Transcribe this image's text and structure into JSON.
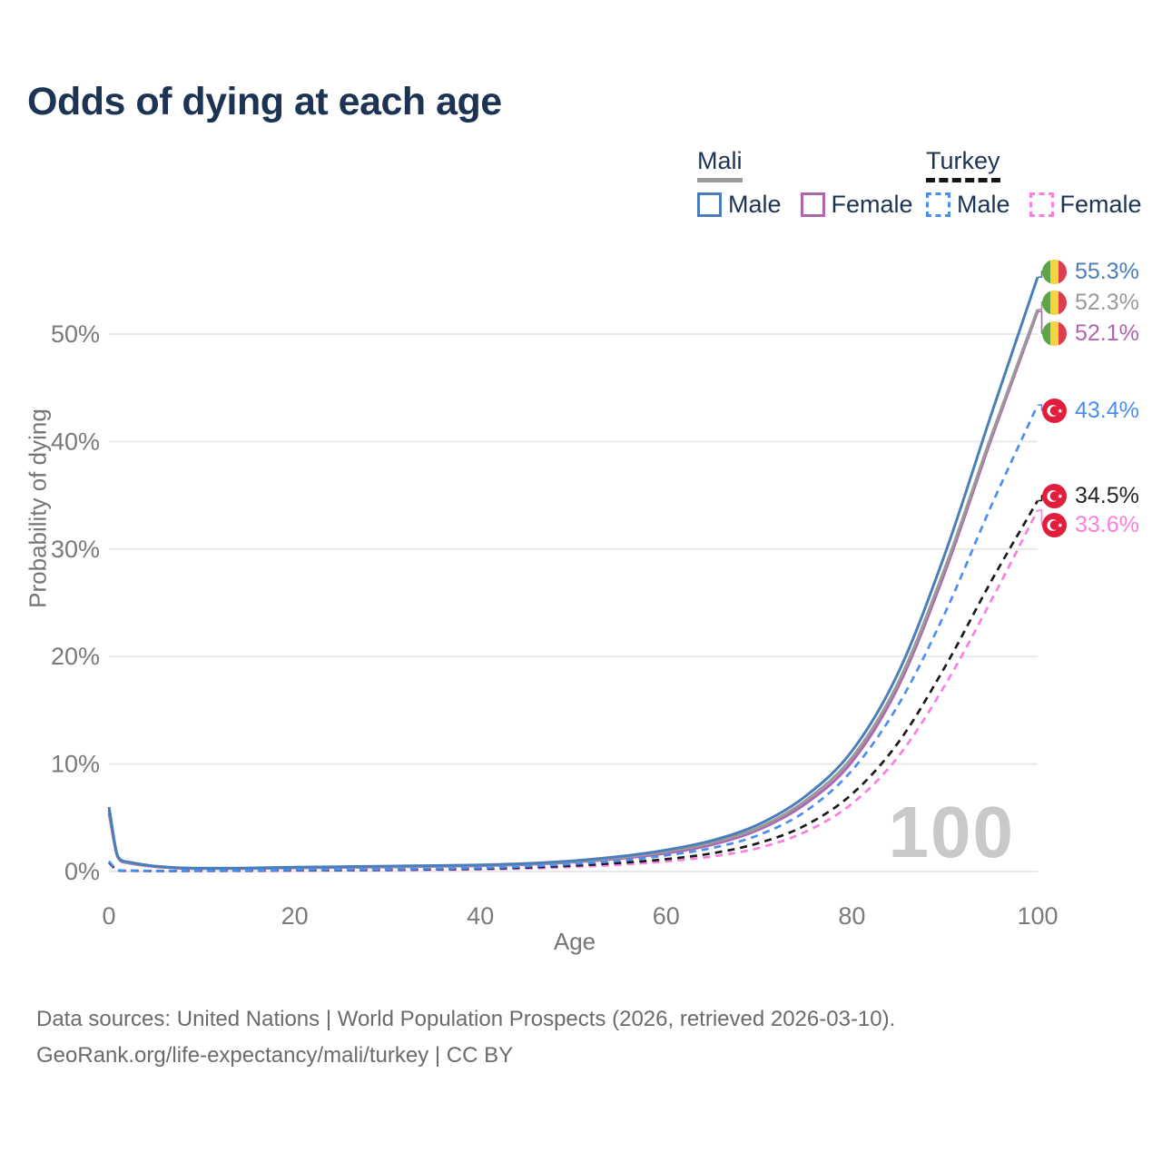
{
  "title": "Odds of dying at each age",
  "legend": {
    "groups": [
      {
        "label": "Mali",
        "line_style": "solid",
        "items": [
          {
            "label": "Male"
          },
          {
            "label": "Female"
          }
        ]
      },
      {
        "label": "Turkey",
        "line_style": "dashed",
        "items": [
          {
            "label": "Male"
          },
          {
            "label": "Female"
          }
        ]
      }
    ]
  },
  "watermark": "100",
  "footer": {
    "line1": "Data sources: United Nations | World Population Prospects (2026, retrieved 2026-03-10).",
    "line2": "GeoRank.org/life-expectancy/mali/turkey | CC BY"
  },
  "icons": {
    "mali_flag": "mali-flag-icon",
    "turkey_flag": "turkey-flag-icon"
  },
  "colors": {
    "title_text": "#1d3354",
    "axis_text": "#757575",
    "grid": "#e9e9e9",
    "watermark": "#c9c9c9",
    "mali_male": "#4a7eba",
    "mali_both": "#9a9a9a",
    "mali_female": "#b165ae",
    "turkey_male": "#4b8ef2",
    "turkey_both": "#1a1a1a",
    "turkey_female": "#fc7ee0",
    "mali_flag_green": "#5fa446",
    "mali_flag_yellow": "#f5d342",
    "mali_flag_red": "#dc3f4b",
    "turkey_flag_red": "#e11d3c"
  },
  "chart_data": {
    "type": "line",
    "title": "Odds of dying at each age",
    "xlabel": "Age",
    "ylabel": "Probability of dying",
    "xlim": [
      0,
      100
    ],
    "ylim": [
      0,
      57
    ],
    "grid": "horizontal",
    "legend_position": "top-right",
    "x_ticks": [
      {
        "v": 0,
        "label": "0"
      },
      {
        "v": 20,
        "label": "20"
      },
      {
        "v": 40,
        "label": "40"
      },
      {
        "v": 60,
        "label": "60"
      },
      {
        "v": 80,
        "label": "80"
      },
      {
        "v": 100,
        "label": "100"
      }
    ],
    "y_ticks": [
      {
        "v": 0,
        "label": "0%"
      },
      {
        "v": 10,
        "label": "10%"
      },
      {
        "v": 20,
        "label": "20%"
      },
      {
        "v": 30,
        "label": "30%"
      },
      {
        "v": 40,
        "label": "40%"
      },
      {
        "v": 50,
        "label": "50%"
      }
    ],
    "x": [
      0,
      1,
      2,
      5,
      10,
      15,
      20,
      25,
      30,
      35,
      40,
      45,
      50,
      55,
      60,
      65,
      70,
      75,
      80,
      85,
      90,
      95,
      100
    ],
    "series": [
      {
        "name": "Mali Male",
        "country": "Mali",
        "sex": "Male",
        "line_style": "solid",
        "color": "#4a7eba",
        "end_label": "55.3%",
        "end_value": 55.3,
        "values": [
          6.0,
          1.35,
          0.9,
          0.5,
          0.3,
          0.32,
          0.4,
          0.45,
          0.5,
          0.55,
          0.62,
          0.75,
          1.0,
          1.4,
          2.0,
          2.9,
          4.4,
          7.0,
          11.2,
          18.5,
          29.5,
          42.5,
          55.3
        ]
      },
      {
        "name": "Mali Both sexes",
        "country": "Mali",
        "sex": "Both",
        "line_style": "solid",
        "color": "#9a9a9a",
        "end_label": "52.3%",
        "end_value": 52.3,
        "values": [
          5.7,
          1.3,
          0.85,
          0.48,
          0.28,
          0.3,
          0.37,
          0.42,
          0.46,
          0.5,
          0.57,
          0.7,
          0.92,
          1.3,
          1.85,
          2.7,
          4.1,
          6.6,
          10.6,
          17.6,
          28.2,
          40.5,
          52.3
        ]
      },
      {
        "name": "Mali Female",
        "country": "Mali",
        "sex": "Female",
        "line_style": "solid",
        "color": "#b165ae",
        "end_label": "52.1%",
        "end_value": 52.1,
        "values": [
          5.4,
          1.25,
          0.8,
          0.45,
          0.27,
          0.28,
          0.34,
          0.38,
          0.42,
          0.47,
          0.53,
          0.65,
          0.86,
          1.2,
          1.7,
          2.5,
          3.9,
          6.3,
          10.2,
          17.2,
          27.8,
          40.2,
          52.1
        ]
      },
      {
        "name": "Turkey Male",
        "country": "Turkey",
        "sex": "Male",
        "line_style": "dashed",
        "color": "#4b8ef2",
        "end_label": "43.4%",
        "end_value": 43.4,
        "values": [
          0.95,
          0.12,
          0.08,
          0.06,
          0.07,
          0.1,
          0.14,
          0.17,
          0.2,
          0.25,
          0.33,
          0.47,
          0.7,
          1.0,
          1.5,
          2.2,
          3.4,
          5.6,
          9.4,
          15.5,
          24.0,
          34.0,
          43.4
        ]
      },
      {
        "name": "Turkey Both sexes",
        "country": "Turkey",
        "sex": "Both",
        "line_style": "dashed",
        "color": "#1a1a1a",
        "end_label": "34.5%",
        "end_value": 34.5,
        "values": [
          0.85,
          0.1,
          0.07,
          0.05,
          0.06,
          0.08,
          0.11,
          0.13,
          0.16,
          0.2,
          0.26,
          0.37,
          0.55,
          0.8,
          1.15,
          1.7,
          2.65,
          4.3,
          7.2,
          12.0,
          19.0,
          27.0,
          34.5
        ]
      },
      {
        "name": "Turkey Female",
        "country": "Turkey",
        "sex": "Female",
        "line_style": "dashed",
        "color": "#fc7ee0",
        "end_label": "33.6%",
        "end_value": 33.6,
        "values": [
          0.8,
          0.09,
          0.06,
          0.04,
          0.05,
          0.06,
          0.08,
          0.1,
          0.12,
          0.15,
          0.2,
          0.28,
          0.42,
          0.63,
          0.95,
          1.4,
          2.2,
          3.7,
          6.3,
          10.7,
          17.3,
          25.2,
          33.6
        ]
      }
    ]
  }
}
